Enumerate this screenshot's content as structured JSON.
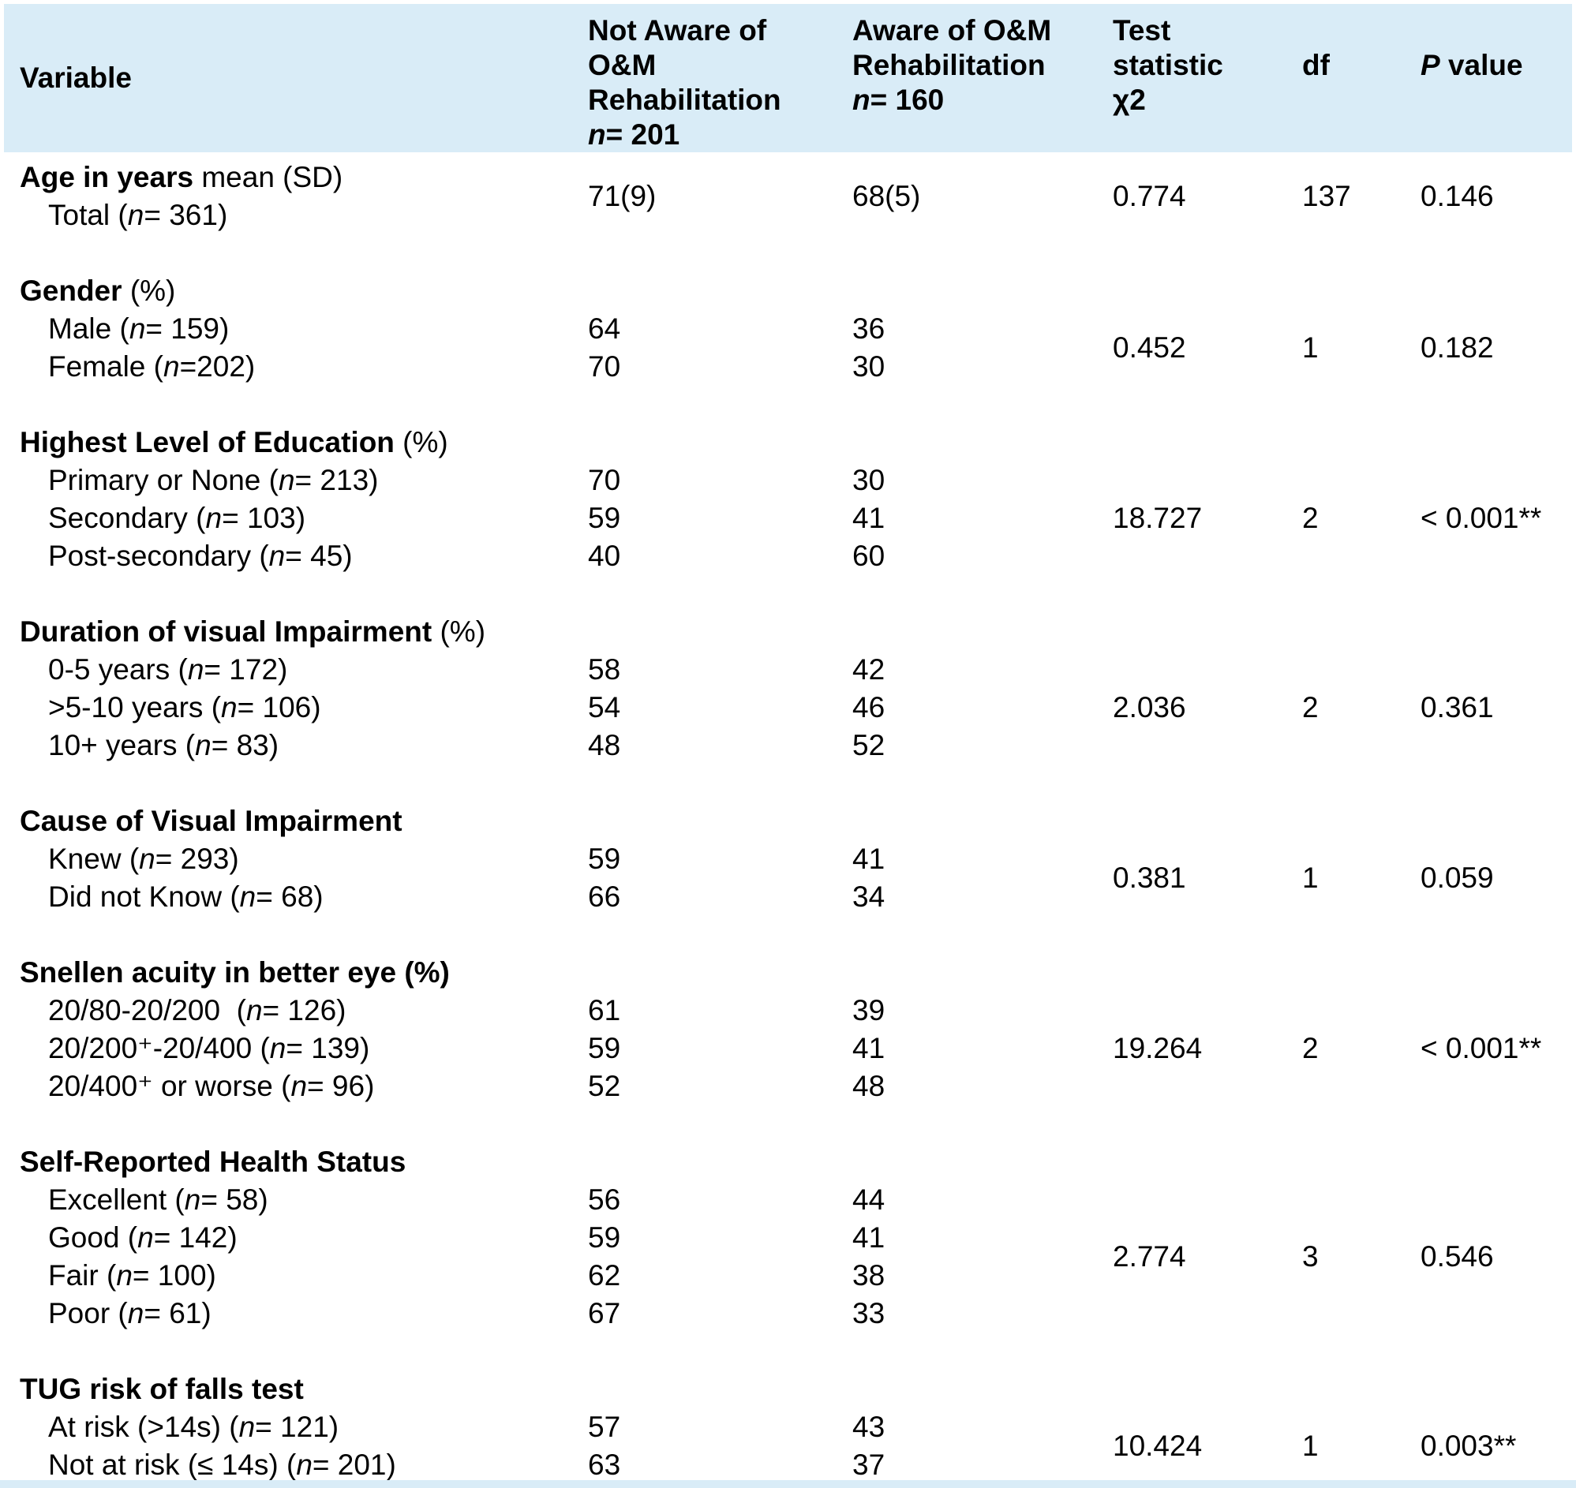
{
  "colors": {
    "header_bg": "#d9ecf7",
    "text": "#000000",
    "bg": "#ffffff"
  },
  "table": {
    "header": {
      "variable": "Variable",
      "col_not_aware_lines": [
        "Not Aware of",
        "O&M",
        "Rehabilitation",
        "n= 201"
      ],
      "col_aware_lines": [
        "Aware of O&M",
        "Rehabilitation",
        "n= 160"
      ],
      "col_test_lines": [
        "Test",
        "statistic",
        "χ2"
      ],
      "col_df": "df",
      "col_p_italic": "P",
      "col_p_rest": " value"
    },
    "sections": [
      {
        "title": "Age in years",
        "suffix": " mean (SD)",
        "inline_values": true,
        "rows": [
          {
            "label": "Total (n= 361)",
            "not_aware": "71(9)",
            "aware": "68(5)"
          }
        ],
        "stat": "0.774",
        "df": "137",
        "p": "0.146"
      },
      {
        "title": "Gender",
        "suffix": " (%)",
        "rows": [
          {
            "label": "Male (n= 159)",
            "not_aware": "64",
            "aware": "36"
          },
          {
            "label": "Female (n=202)",
            "not_aware": "70",
            "aware": "30"
          }
        ],
        "stat": "0.452",
        "df": "1",
        "p": "0.182"
      },
      {
        "title": "Highest Level of Education",
        "suffix": " (%)",
        "rows": [
          {
            "label": "Primary or None (n= 213)",
            "not_aware": "70",
            "aware": "30"
          },
          {
            "label": "Secondary (n= 103)",
            "not_aware": "59",
            "aware": "41"
          },
          {
            "label": "Post-secondary (n= 45)",
            "not_aware": "40",
            "aware": "60"
          }
        ],
        "stat": "18.727",
        "df": "2",
        "p": "< 0.001**"
      },
      {
        "title": "Duration of visual Impairment",
        "suffix": " (%)",
        "rows": [
          {
            "label": "0-5 years (n= 172)",
            "not_aware": "58",
            "aware": "42"
          },
          {
            "label": ">5-10 years (n= 106)",
            "not_aware": "54",
            "aware": "46"
          },
          {
            "label": "10+ years (n= 83)",
            "not_aware": "48",
            "aware": "52"
          }
        ],
        "stat": "2.036",
        "df": "2",
        "p": "0.361"
      },
      {
        "title": "Cause of Visual Impairment",
        "suffix": "",
        "rows": [
          {
            "label": "Knew (n= 293)",
            "not_aware": "59",
            "aware": "41"
          },
          {
            "label": "Did not Know (n= 68)",
            "not_aware": "66",
            "aware": "34"
          }
        ],
        "stat": "0.381",
        "df": "1",
        "p": "0.059"
      },
      {
        "title": "Snellen acuity in better eye (%)",
        "suffix": "",
        "rows": [
          {
            "label": "20/80-20/200  (n= 126)",
            "not_aware": "61",
            "aware": "39"
          },
          {
            "label": "20/200⁺-20/400 (n= 139)",
            "not_aware": "59",
            "aware": "41"
          },
          {
            "label": "20/400⁺ or worse (n= 96)",
            "not_aware": "52",
            "aware": "48"
          }
        ],
        "stat": "19.264",
        "df": "2",
        "p": "< 0.001**"
      },
      {
        "title": "Self-Reported Health Status",
        "suffix": "",
        "rows": [
          {
            "label": "Excellent (n= 58)",
            "not_aware": "56",
            "aware": "44"
          },
          {
            "label": "Good (n= 142)",
            "not_aware": "59",
            "aware": "41"
          },
          {
            "label": "Fair (n= 100)",
            "not_aware": "62",
            "aware": "38"
          },
          {
            "label": "Poor (n= 61)",
            "not_aware": "67",
            "aware": "33"
          }
        ],
        "stat": "2.774",
        "df": "3",
        "p": "0.546"
      },
      {
        "title": "TUG risk of falls test",
        "suffix": "",
        "rows": [
          {
            "label": "At risk (>14s) (n= 121)",
            "not_aware": "57",
            "aware": "43"
          },
          {
            "label": "Not at risk (≤ 14s) (n= 201)",
            "not_aware": "63",
            "aware": "37"
          }
        ],
        "stat": "10.424",
        "df": "1",
        "p": "0.003**"
      }
    ]
  }
}
